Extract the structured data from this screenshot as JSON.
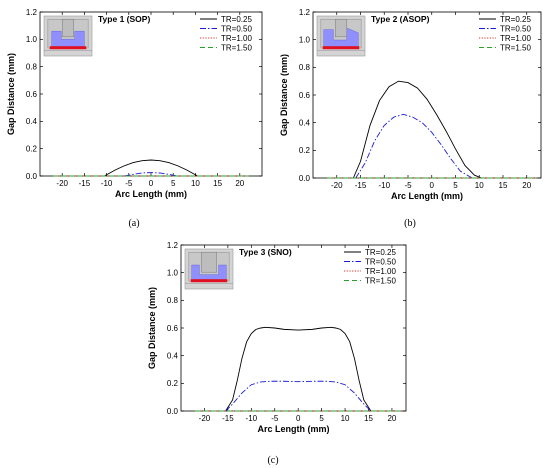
{
  "chart_data": [
    {
      "type": "line",
      "title": "Type 1 (SOP)",
      "caption": "(a)",
      "xlabel": "Arc Length (mm)",
      "ylabel": "Gap Distance (mm)",
      "xlim": [
        -25,
        25
      ],
      "ylim": [
        0,
        1.2
      ],
      "xticks": [
        -20,
        -15,
        -10,
        -5,
        0,
        5,
        10,
        15,
        20
      ],
      "yticks": [
        0.0,
        0.2,
        0.4,
        0.6,
        0.8,
        1.0,
        1.2
      ],
      "legend_position": "top-right",
      "series": [
        {
          "name": "TR=0.25",
          "color": "#000000",
          "dash": "solid",
          "x": [
            -10.5,
            -8,
            -6,
            -4,
            -2,
            0,
            2,
            4,
            6,
            8,
            10.5
          ],
          "y": [
            0.0,
            0.045,
            0.075,
            0.098,
            0.112,
            0.117,
            0.112,
            0.098,
            0.075,
            0.045,
            0.0
          ]
        },
        {
          "name": "TR=0.50",
          "color": "#1a1adc",
          "dash": "dashdot",
          "x": [
            -6,
            -4,
            -2,
            0,
            2,
            4,
            6
          ],
          "y": [
            0.0,
            0.012,
            0.022,
            0.025,
            0.022,
            0.012,
            0.0
          ]
        },
        {
          "name": "TR=1.00",
          "color": "#e03020",
          "dash": "dotted",
          "x": [
            -22,
            22
          ],
          "y": [
            0.0,
            0.0
          ]
        },
        {
          "name": "TR=1.50",
          "color": "#2aa02a",
          "dash": "dashed",
          "x": [
            -22,
            22
          ],
          "y": [
            0.0,
            0.0
          ]
        }
      ]
    },
    {
      "type": "line",
      "title": "Type 2 (ASOP)",
      "caption": "(b)",
      "xlabel": "Arc Length (mm)",
      "ylabel": "Gap Distance (mm)",
      "xlim": [
        -25,
        23
      ],
      "ylim": [
        0,
        1.2
      ],
      "xticks": [
        -20,
        -15,
        -10,
        -5,
        0,
        5,
        10,
        15,
        20
      ],
      "yticks": [
        0.0,
        0.2,
        0.4,
        0.6,
        0.8,
        1.0,
        1.2
      ],
      "legend_position": "top-right",
      "series": [
        {
          "name": "TR=0.25",
          "color": "#000000",
          "dash": "solid",
          "x": [
            -16.5,
            -15,
            -13,
            -11,
            -9,
            -7,
            -5,
            -3,
            -1,
            1,
            3,
            5,
            7,
            9,
            10.5
          ],
          "y": [
            0.0,
            0.12,
            0.38,
            0.56,
            0.66,
            0.7,
            0.69,
            0.65,
            0.57,
            0.46,
            0.34,
            0.21,
            0.09,
            0.02,
            0.0
          ]
        },
        {
          "name": "TR=0.50",
          "color": "#1a1adc",
          "dash": "dashdot",
          "x": [
            -16,
            -14,
            -12,
            -10,
            -8,
            -6,
            -4,
            -2,
            0,
            2,
            4,
            6,
            8.5
          ],
          "y": [
            0.0,
            0.11,
            0.27,
            0.38,
            0.44,
            0.46,
            0.44,
            0.4,
            0.33,
            0.24,
            0.14,
            0.05,
            0.0
          ]
        },
        {
          "name": "TR=1.00",
          "color": "#e03020",
          "dash": "dotted",
          "x": [
            -22,
            22
          ],
          "y": [
            0.0,
            0.0
          ]
        },
        {
          "name": "TR=1.50",
          "color": "#2aa02a",
          "dash": "dashed",
          "x": [
            -22,
            22
          ],
          "y": [
            0.0,
            0.0
          ]
        }
      ]
    },
    {
      "type": "line",
      "title": "Type 3 (SNO)",
      "caption": "(c)",
      "xlabel": "Arc Length (mm)",
      "ylabel": "Gap Distance (mm)",
      "xlim": [
        -25,
        23
      ],
      "ylim": [
        0,
        1.2
      ],
      "xticks": [
        -20,
        -15,
        -10,
        -5,
        0,
        5,
        10,
        15,
        20
      ],
      "yticks": [
        0.0,
        0.2,
        0.4,
        0.6,
        0.8,
        1.0,
        1.2
      ],
      "legend_position": "top-right",
      "series": [
        {
          "name": "TR=0.25",
          "color": "#000000",
          "dash": "solid",
          "x": [
            -15.5,
            -14,
            -13,
            -12,
            -11,
            -10,
            -9,
            -8,
            -7,
            -5,
            -3,
            0,
            3,
            5,
            7,
            8,
            9,
            10,
            11,
            12,
            13,
            14,
            15.5
          ],
          "y": [
            0.0,
            0.08,
            0.22,
            0.38,
            0.5,
            0.56,
            0.59,
            0.6,
            0.605,
            0.6,
            0.59,
            0.585,
            0.59,
            0.6,
            0.605,
            0.6,
            0.59,
            0.56,
            0.5,
            0.38,
            0.22,
            0.08,
            0.0
          ]
        },
        {
          "name": "TR=0.50",
          "color": "#1a1adc",
          "dash": "dashdot",
          "x": [
            -15.5,
            -14,
            -12,
            -10,
            -8,
            -6,
            -3,
            0,
            3,
            6,
            8,
            10,
            12,
            14,
            15.5
          ],
          "y": [
            0.0,
            0.05,
            0.13,
            0.19,
            0.21,
            0.215,
            0.215,
            0.212,
            0.215,
            0.215,
            0.21,
            0.19,
            0.13,
            0.05,
            0.0
          ]
        },
        {
          "name": "TR=1.00",
          "color": "#e03020",
          "dash": "dotted",
          "x": [
            -22,
            22
          ],
          "y": [
            0.0,
            0.0
          ]
        },
        {
          "name": "TR=1.50",
          "color": "#2aa02a",
          "dash": "dashed",
          "x": [
            -22,
            22
          ],
          "y": [
            0.0,
            0.0
          ]
        }
      ]
    }
  ]
}
